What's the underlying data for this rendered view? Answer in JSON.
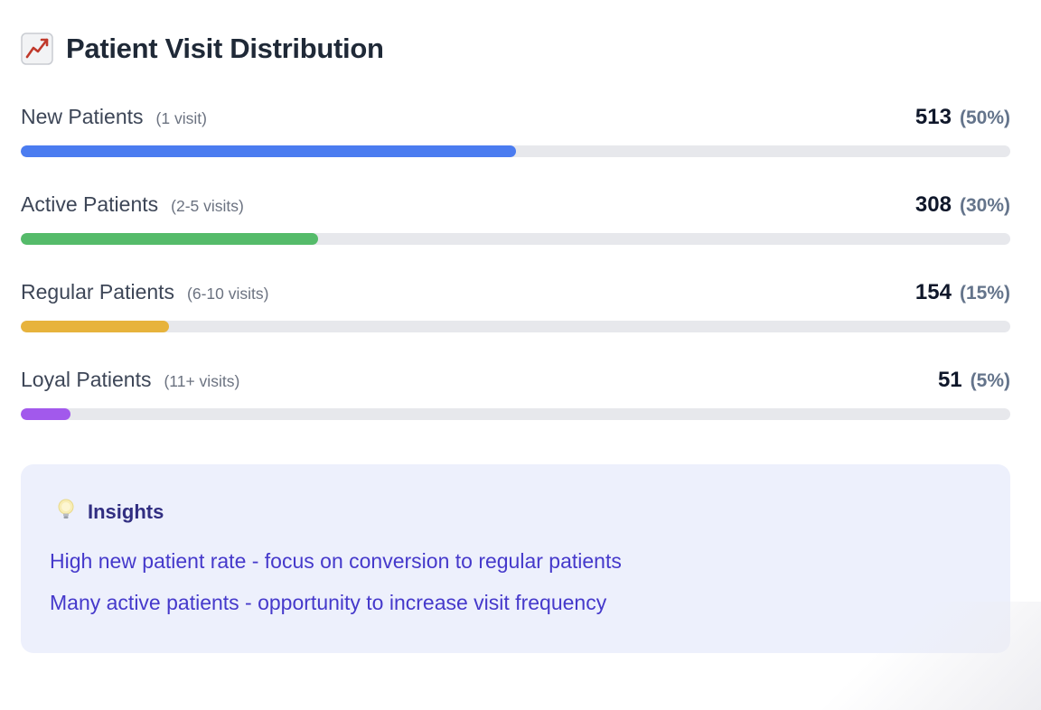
{
  "header": {
    "title": "Patient Visit Distribution",
    "title_icon": "chart-increasing-icon"
  },
  "rows": [
    {
      "label": "New Patients",
      "qualifier": "(1 visit)",
      "count": "513",
      "percent_label": "(50%)",
      "percent": 50,
      "color": "#4b7cf0"
    },
    {
      "label": "Active Patients",
      "qualifier": "(2-5 visits)",
      "count": "308",
      "percent_label": "(30%)",
      "percent": 30,
      "color": "#55bb6a"
    },
    {
      "label": "Regular Patients",
      "qualifier": "(6-10 visits)",
      "count": "154",
      "percent_label": "(15%)",
      "percent": 15,
      "color": "#e7b33c"
    },
    {
      "label": "Loyal Patients",
      "qualifier": "(11+ visits)",
      "count": "51",
      "percent_label": "(5%)",
      "percent": 5,
      "color": "#a259ec"
    }
  ],
  "insights": {
    "icon": "light-bulb-icon",
    "title": "Insights",
    "items": [
      "High new patient rate - focus on conversion to regular patients",
      "Many active patients - opportunity to increase visit frequency"
    ]
  },
  "colors": {
    "track": "#e7e8ec",
    "insights_background": "#edf0fc",
    "insights_title": "#312e81",
    "insights_text": "#4539cb",
    "title_text": "#1f2937",
    "count_text": "#0f172a",
    "percent_text": "#64748b"
  },
  "chart_data": {
    "type": "bar",
    "orientation": "horizontal",
    "title": "Patient Visit Distribution",
    "categories": [
      "New Patients (1 visit)",
      "Active Patients (2-5 visits)",
      "Regular Patients (6-10 visits)",
      "Loyal Patients (11+ visits)"
    ],
    "values": [
      513,
      308,
      154,
      51
    ],
    "percentages": [
      50,
      30,
      15,
      5
    ],
    "value_range": [
      0,
      100
    ],
    "unit": "percent of total patients",
    "bar_colors": [
      "#4b7cf0",
      "#55bb6a",
      "#e7b33c",
      "#a259ec"
    ],
    "legend": "none",
    "grid": "off",
    "annotations": [
      "High new patient rate - focus on conversion to regular patients",
      "Many active patients - opportunity to increase visit frequency"
    ]
  }
}
